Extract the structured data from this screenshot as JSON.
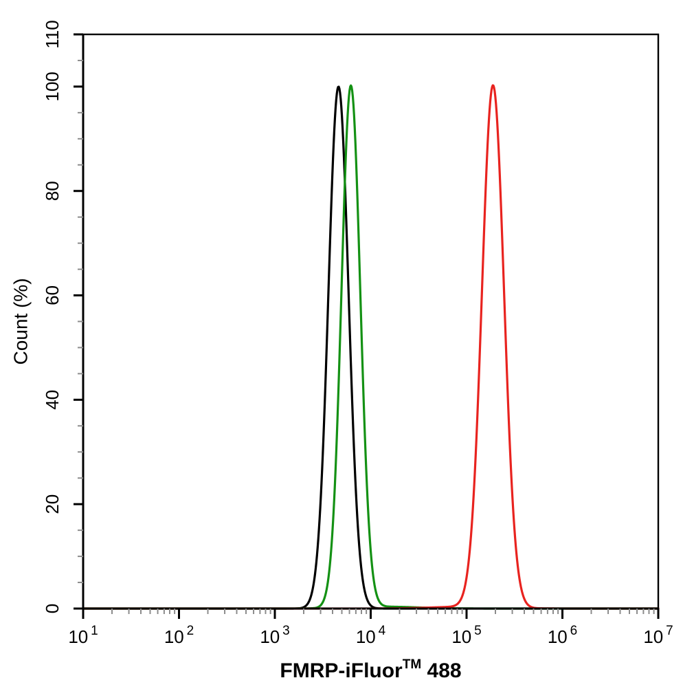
{
  "chart_data": {
    "type": "line",
    "title": "",
    "xlabel": "FMRP-iFluor™ 488",
    "xlabel_parts": {
      "main": "FMRP-iFluor",
      "superscript": "TM",
      "suffix": " 488"
    },
    "ylabel": "Count  (%)",
    "x_scale": "log10",
    "x_range_log10": [
      1,
      7
    ],
    "ylim": [
      0,
      110
    ],
    "grid": false,
    "legend_position": "none",
    "background_color": "#ffffff",
    "axis_color": "#000000",
    "minor_tick_color": "#8c8c8c",
    "x_tick_labels": [
      {
        "base": "10",
        "exponent": "1"
      },
      {
        "base": "10",
        "exponent": "2"
      },
      {
        "base": "10",
        "exponent": "3"
      },
      {
        "base": "10",
        "exponent": "4"
      },
      {
        "base": "10",
        "exponent": "5"
      },
      {
        "base": "10",
        "exponent": "6"
      },
      {
        "base": "10",
        "exponent": "7"
      }
    ],
    "y_tick_values": [
      0,
      20,
      40,
      60,
      80,
      100,
      110
    ],
    "y_minor_tick_step": 5,
    "x_minor_tick_mantissas": [
      2,
      3,
      4,
      5,
      6,
      7,
      8,
      9
    ],
    "series": [
      {
        "name": "black-peak",
        "color": "#000000",
        "peak_x": 4700,
        "peak_log10_x": 3.664,
        "peak_y_percent": 100,
        "sigma_log10": 0.105,
        "components": [
          [
            3.664,
            0.105,
            100
          ]
        ]
      },
      {
        "name": "green-peak",
        "color": "#149114",
        "peak_x": 6200,
        "peak_log10_x": 3.793,
        "peak_y_percent": 100,
        "sigma_log10": 0.098,
        "components": [
          [
            3.793,
            0.098,
            100
          ],
          [
            4.15,
            0.35,
            0.35
          ]
        ]
      },
      {
        "name": "red-peak",
        "color": "#e8231f",
        "peak_x": 190000,
        "peak_log10_x": 5.276,
        "peak_y_percent": 100,
        "sigma_log10": 0.115,
        "components": [
          [
            5.276,
            0.115,
            100
          ],
          [
            5.0,
            0.35,
            0.35
          ]
        ]
      }
    ]
  }
}
